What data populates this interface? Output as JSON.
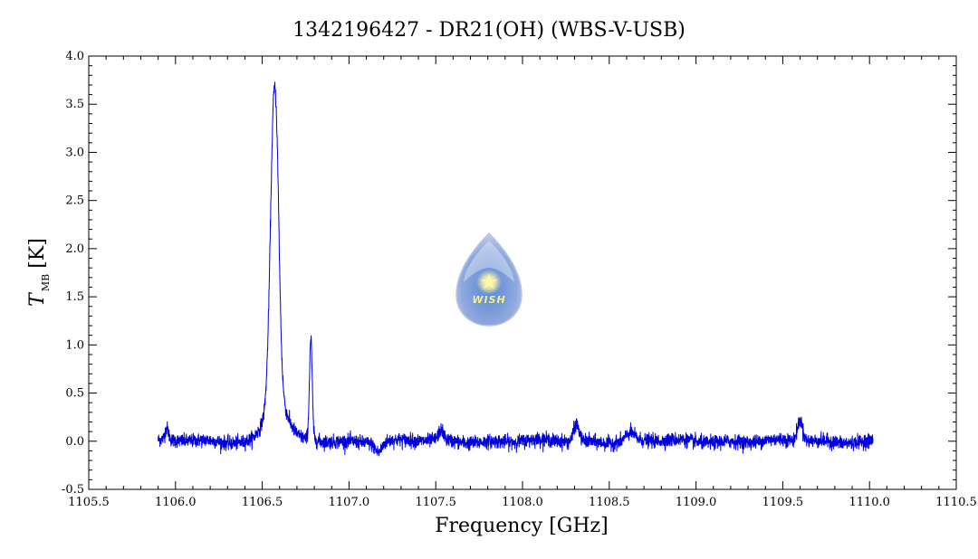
{
  "chart_data": {
    "type": "line",
    "title": "1342196427 - DR21(OH) (WBS-V-USB)",
    "xlabel": "Frequency [GHz]",
    "ylabel": {
      "symbol": "T",
      "subscript": "MB",
      "unit": "[K]"
    },
    "xlim": [
      1105.5,
      1110.5
    ],
    "ylim": [
      -0.5,
      4.0
    ],
    "xticks": [
      1105.5,
      1106.0,
      1106.5,
      1107.0,
      1107.5,
      1108.0,
      1108.5,
      1109.0,
      1109.5,
      1110.0,
      1110.5
    ],
    "xtick_labels": [
      "1105.5",
      "1106.0",
      "1106.5",
      "1107.0",
      "1107.5",
      "1108.0",
      "1108.5",
      "1109.0",
      "1109.5",
      "1110.0",
      "1110.5"
    ],
    "yticks": [
      -0.5,
      0.0,
      0.5,
      1.0,
      1.5,
      2.0,
      2.5,
      3.0,
      3.5,
      4.0
    ],
    "ytick_labels": [
      "-0.5",
      "0.0",
      "0.5",
      "1.0",
      "1.5",
      "2.0",
      "2.5",
      "3.0",
      "3.5",
      "4.0"
    ],
    "grid": false,
    "series": [
      {
        "color": "#0000dd",
        "x_start": 1105.9,
        "x_end": 1110.02,
        "baseline": 0.0,
        "noise_rms": 0.035,
        "features": [
          {
            "center": 1106.57,
            "amplitude": 3.2,
            "width": 0.022
          },
          {
            "center": 1106.59,
            "amplitude": 0.25,
            "width": 0.01
          },
          {
            "center": 1106.58,
            "amplitude": 0.45,
            "width": 0.06
          },
          {
            "center": 1106.78,
            "amplitude": 1.05,
            "width": 0.008
          },
          {
            "center": 1105.95,
            "amplitude": 0.12,
            "width": 0.01
          },
          {
            "center": 1107.17,
            "amplitude": -0.1,
            "width": 0.02
          },
          {
            "center": 1107.53,
            "amplitude": 0.1,
            "width": 0.015
          },
          {
            "center": 1108.31,
            "amplitude": 0.18,
            "width": 0.015
          },
          {
            "center": 1108.62,
            "amplitude": 0.08,
            "width": 0.025
          },
          {
            "center": 1109.6,
            "amplitude": 0.22,
            "width": 0.015
          }
        ]
      }
    ],
    "watermark": {
      "text": "WISH"
    }
  }
}
